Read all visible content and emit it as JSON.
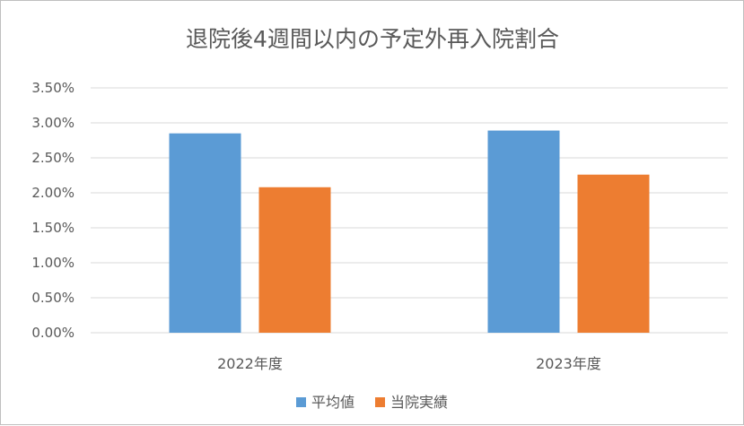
{
  "chart_data": {
    "type": "bar",
    "title": "退院後4週間以内の予定外再入院割合",
    "categories": [
      "2022年度",
      "2023年度"
    ],
    "series": [
      {
        "name": "平均値",
        "values": [
          0.0285,
          0.0289
        ],
        "color": "#5b9bd5"
      },
      {
        "name": "当院実績",
        "values": [
          0.0208,
          0.0226
        ],
        "color": "#ed7d31"
      }
    ],
    "y_ticks": [
      "0.00%",
      "0.50%",
      "1.00%",
      "1.50%",
      "2.00%",
      "2.50%",
      "3.00%",
      "3.50%"
    ],
    "ylim": [
      0,
      0.035
    ],
    "xlabel": "",
    "ylabel": "",
    "grid": true,
    "legend_position": "bottom",
    "gridline_color": "#d9d9d9"
  }
}
